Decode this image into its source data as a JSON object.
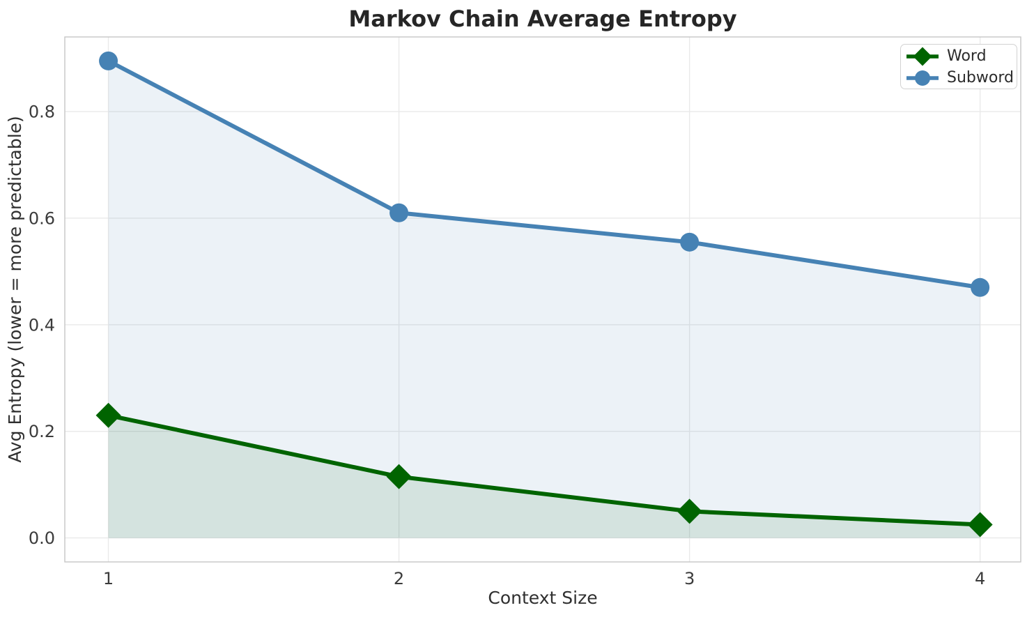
{
  "chart_data": {
    "type": "line",
    "title": "Markov Chain Average Entropy",
    "xlabel": "Context Size",
    "ylabel": "Avg Entropy (lower = more predictable)",
    "x": [
      1,
      2,
      3,
      4
    ],
    "xticks": [
      1,
      2,
      3,
      4
    ],
    "yticks": [
      0.0,
      0.2,
      0.4,
      0.6,
      0.8
    ],
    "xlim": [
      0.85,
      4.14
    ],
    "ylim": [
      -0.045,
      0.94
    ],
    "grid": true,
    "legend_position": "upper right",
    "series": [
      {
        "name": "Word",
        "color": "#006400",
        "marker": "diamond",
        "values": [
          0.23,
          0.115,
          0.05,
          0.025
        ],
        "fill_to_zero": true,
        "fill_opacity": 0.1
      },
      {
        "name": "Subword",
        "color": "#4682b4",
        "marker": "circle",
        "values": [
          0.895,
          0.61,
          0.555,
          0.47
        ],
        "fill_to_zero": true,
        "fill_opacity": 0.1
      }
    ]
  },
  "style": {
    "background": "#ffffff",
    "grid_color": "#e9e9e9",
    "spine_color": "#c6c6c6",
    "tick_label_color": "#3b3b3b",
    "axis_label_color": "#2f2f2f",
    "title_color": "#262626"
  }
}
